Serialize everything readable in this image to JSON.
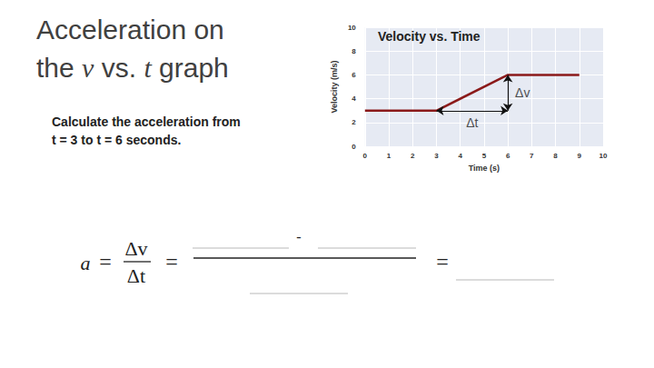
{
  "slide": {
    "title": [
      [
        {
          "text": "Acceleration on"
        }
      ],
      [
        {
          "text": "the "
        },
        {
          "text": "v",
          "italic": true
        },
        {
          "text": " vs. "
        },
        {
          "text": "t",
          "italic": true
        },
        {
          "text": " graph"
        }
      ]
    ],
    "prompt": [
      "Calculate the acceleration from",
      "t = 3 to t = 6 seconds."
    ],
    "formula": {
      "variable": "a",
      "fraction": [
        "Δv",
        "Δt"
      ],
      "equals": "=",
      "minus": "-"
    }
  },
  "chart_data": {
    "type": "line",
    "title": "Velocity vs. Time",
    "x_label": "Time (s)",
    "y_label": "Velocity (m/s)",
    "x": [
      0,
      3,
      6,
      9
    ],
    "values": [
      3,
      3,
      6,
      6
    ],
    "color": "#8b1a1a",
    "xlim": [
      0,
      10
    ],
    "xticks": [
      0,
      1,
      2,
      3,
      4,
      5,
      6,
      7,
      8,
      9,
      10
    ],
    "ylim": [
      0,
      10
    ],
    "yticks": [
      0,
      2,
      4,
      6,
      8,
      10
    ],
    "grid": true,
    "annotations": [
      {
        "text": "Δv",
        "from": [
          6,
          3
        ],
        "to": [
          6,
          6
        ]
      },
      {
        "text": "Δt",
        "from": [
          3,
          3
        ],
        "to": [
          6,
          3
        ]
      }
    ]
  }
}
